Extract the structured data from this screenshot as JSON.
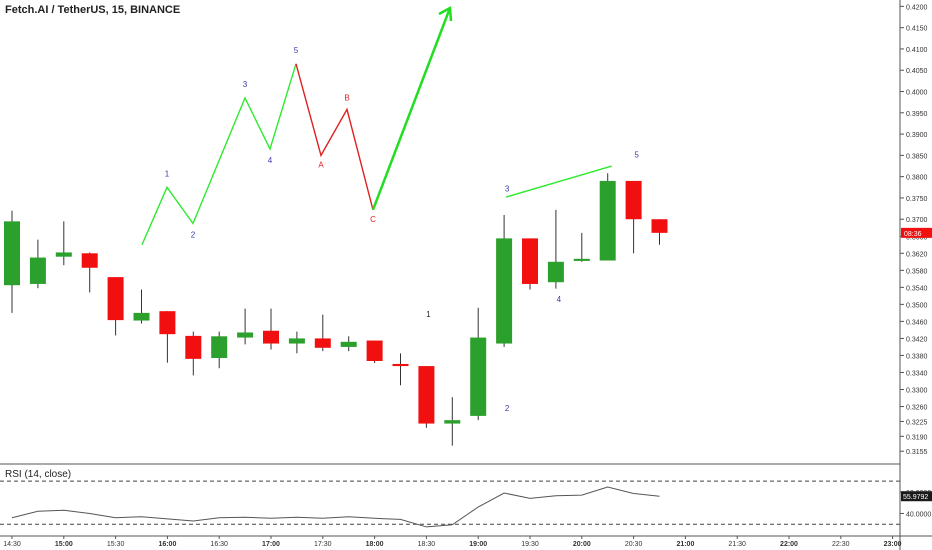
{
  "header": {
    "title": "Fetch.AI / TetherUS, 15, BINANCE"
  },
  "colors": {
    "up": "#2ca02c",
    "down": "#f20f0f",
    "impulse": "#2eea2e",
    "correction": "#e02020",
    "wave_label": "#3a3aa8",
    "arrow": "#22dd22",
    "price_badge": "#f20f0f",
    "rsi_badge": "#1a1a1a"
  },
  "chart_data": [
    {
      "type": "candlestick",
      "title": "Fetch.AI / TetherUS, 15, BINANCE",
      "ylim": [
        0.3125,
        0.4215
      ],
      "y_ticks": [
        "0.4200",
        "0.4150",
        "0.4100",
        "0.4050",
        "0.4000",
        "0.3950",
        "0.3900",
        "0.3850",
        "0.3800",
        "0.3750",
        "0.3700",
        "0.3660",
        "0.3620",
        "0.3580",
        "0.3540",
        "0.3500",
        "0.3460",
        "0.3420",
        "0.3380",
        "0.3340",
        "0.3300",
        "0.3260",
        "0.3225",
        "0.3190",
        "0.3155"
      ],
      "x_ticks": [
        "14:30",
        "15:00",
        "15:30",
        "16:00",
        "16:30",
        "17:00",
        "17:30",
        "18:00",
        "18:30",
        "19:00",
        "19:30",
        "20:00",
        "20:30",
        "21:00",
        "21:30",
        "22:00",
        "22:30",
        "23:00"
      ],
      "last_price_label": "08:36",
      "candles": [
        {
          "time": "14:30",
          "o": 0.3545,
          "h": 0.372,
          "l": 0.348,
          "c": 0.3695
        },
        {
          "time": "14:45",
          "o": 0.3548,
          "h": 0.3652,
          "l": 0.3538,
          "c": 0.361
        },
        {
          "time": "15:00",
          "o": 0.3612,
          "h": 0.3695,
          "l": 0.3592,
          "c": 0.3622
        },
        {
          "time": "15:15",
          "o": 0.362,
          "h": 0.3622,
          "l": 0.3528,
          "c": 0.3586
        },
        {
          "time": "15:30",
          "o": 0.3564,
          "h": 0.3564,
          "l": 0.3427,
          "c": 0.3463
        },
        {
          "time": "15:45",
          "o": 0.3462,
          "h": 0.3535,
          "l": 0.3455,
          "c": 0.348
        },
        {
          "time": "16:00",
          "o": 0.3484,
          "h": 0.3484,
          "l": 0.3363,
          "c": 0.343
        },
        {
          "time": "16:15",
          "o": 0.3426,
          "h": 0.3436,
          "l": 0.3333,
          "c": 0.3372
        },
        {
          "time": "16:30",
          "o": 0.3374,
          "h": 0.3436,
          "l": 0.335,
          "c": 0.3425
        },
        {
          "time": "16:45",
          "o": 0.3422,
          "h": 0.349,
          "l": 0.3406,
          "c": 0.3434
        },
        {
          "time": "17:00",
          "o": 0.3438,
          "h": 0.349,
          "l": 0.3394,
          "c": 0.3408
        },
        {
          "time": "17:15",
          "o": 0.3408,
          "h": 0.3436,
          "l": 0.3385,
          "c": 0.342
        },
        {
          "time": "17:30",
          "o": 0.342,
          "h": 0.3476,
          "l": 0.339,
          "c": 0.3398
        },
        {
          "time": "17:45",
          "o": 0.34,
          "h": 0.3425,
          "l": 0.339,
          "c": 0.3412
        },
        {
          "time": "18:00",
          "o": 0.3415,
          "h": 0.3415,
          "l": 0.3362,
          "c": 0.3367
        },
        {
          "time": "18:15",
          "o": 0.336,
          "h": 0.3385,
          "l": 0.331,
          "c": 0.3355
        },
        {
          "time": "18:30",
          "o": 0.3355,
          "h": 0.3355,
          "l": 0.321,
          "c": 0.322
        },
        {
          "time": "18:45",
          "o": 0.322,
          "h": 0.3282,
          "l": 0.3168,
          "c": 0.3228
        },
        {
          "time": "19:00",
          "o": 0.3238,
          "h": 0.3492,
          "l": 0.3228,
          "c": 0.3422
        },
        {
          "time": "19:15",
          "o": 0.3408,
          "h": 0.371,
          "l": 0.34,
          "c": 0.3655
        },
        {
          "time": "19:30",
          "o": 0.3655,
          "h": 0.3655,
          "l": 0.3535,
          "c": 0.3548
        },
        {
          "time": "19:45",
          "o": 0.3552,
          "h": 0.3722,
          "l": 0.3537,
          "c": 0.36
        },
        {
          "time": "20:00",
          "o": 0.3602,
          "h": 0.3668,
          "l": 0.36,
          "c": 0.3607
        },
        {
          "time": "20:15",
          "o": 0.3603,
          "h": 0.3808,
          "l": 0.3603,
          "c": 0.379
        },
        {
          "time": "20:30",
          "o": 0.379,
          "h": 0.379,
          "l": 0.362,
          "c": 0.37
        },
        {
          "time": "20:45",
          "o": 0.37,
          "h": 0.37,
          "l": 0.364,
          "c": 0.3668
        }
      ]
    },
    {
      "type": "line",
      "title": "RSI (14, close)",
      "ylim": [
        20,
        85
      ],
      "y_ticks": [
        "60.0000",
        "40.0000"
      ],
      "bands": [
        70,
        30
      ],
      "last_value_label": "55.9792",
      "x": [
        "14:30",
        "14:45",
        "15:00",
        "15:15",
        "15:30",
        "15:45",
        "16:00",
        "16:15",
        "16:30",
        "16:45",
        "17:00",
        "17:15",
        "17:30",
        "17:45",
        "18:00",
        "18:15",
        "18:30",
        "18:45",
        "19:00",
        "19:15",
        "19:30",
        "19:45",
        "20:00",
        "20:15",
        "20:30",
        "20:45"
      ],
      "values": [
        36,
        42,
        43,
        40,
        36,
        37,
        35,
        33,
        36,
        36.5,
        35.5,
        36.5,
        35.5,
        37,
        35.5,
        34.5,
        27.5,
        29.5,
        46,
        59,
        54,
        56.5,
        57,
        64.5,
        58.5,
        56
      ]
    }
  ],
  "annotations": {
    "impulse_wave": {
      "labels": [
        "1",
        "2",
        "3",
        "4",
        "5"
      ],
      "points": [
        0.364,
        0.3775,
        0.369,
        0.3985,
        0.3865,
        0.4065
      ]
    },
    "correction": {
      "labels": [
        "A",
        "B",
        "C"
      ],
      "points": [
        0.385,
        0.3958,
        0.3722
      ]
    },
    "candle_waves": [
      {
        "label": "1",
        "time": "18:45",
        "price": 0.347
      },
      {
        "label": "2",
        "time": "19:15",
        "price": 0.325
      },
      {
        "label": "3",
        "time": "19:15",
        "price": 0.3765
      },
      {
        "label": "4",
        "time": "19:45",
        "price": 0.3505
      },
      {
        "label": "5",
        "time": "20:30",
        "price": 0.3845
      }
    ]
  }
}
